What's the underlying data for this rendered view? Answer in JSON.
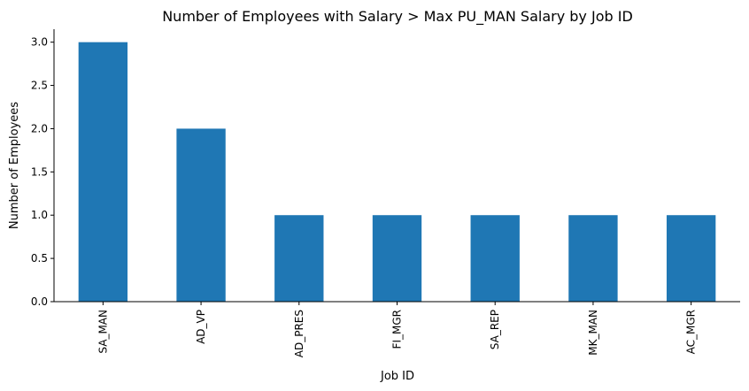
{
  "chart_data": {
    "type": "bar",
    "title": "Number of Employees with Salary > Max PU_MAN Salary by Job ID",
    "xlabel": "Job ID",
    "ylabel": "Number of Employees",
    "categories": [
      "SA_MAN",
      "AD_VP",
      "AD_PRES",
      "FI_MGR",
      "SA_REP",
      "MK_MAN",
      "AC_MGR"
    ],
    "values": [
      3,
      2,
      1,
      1,
      1,
      1,
      1
    ],
    "ylim": [
      0,
      3.15
    ],
    "yticks": [
      "0.0",
      "0.5",
      "1.0",
      "1.5",
      "2.0",
      "2.5",
      "3.0"
    ],
    "grid": false,
    "bar_color": "#1f77b4",
    "spines": [
      "left",
      "bottom"
    ]
  }
}
